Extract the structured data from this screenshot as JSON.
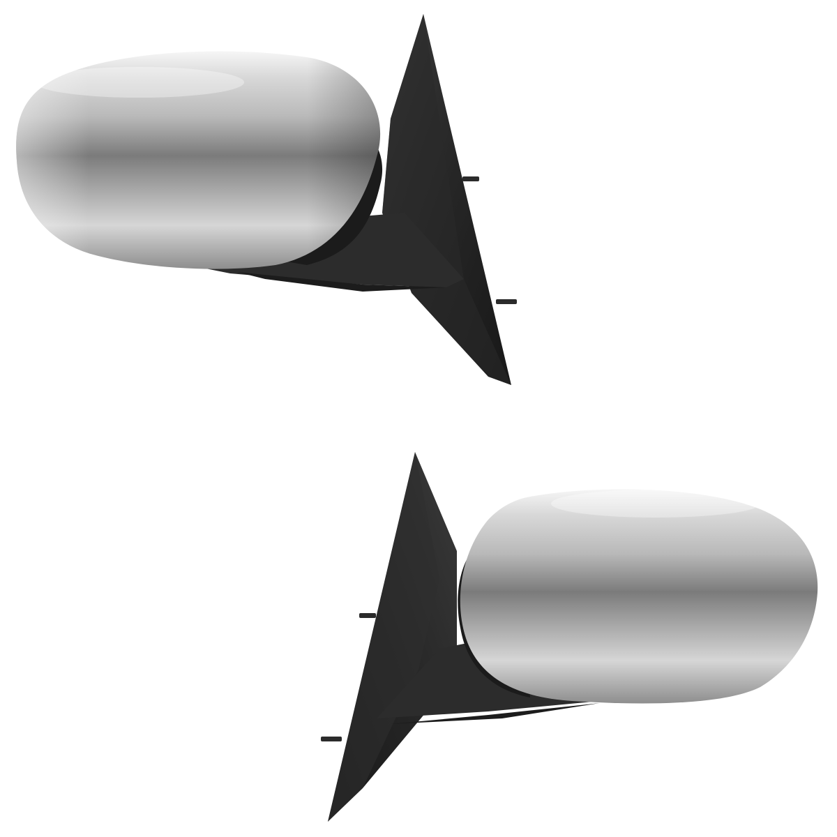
{
  "scene": {
    "subject": "pair-of-side-mirrors",
    "background_color": "#ffffff",
    "mirror_left": {
      "side": "driver",
      "housing_finish": "chrome",
      "icon": "side-mirror-icon"
    },
    "mirror_right": {
      "side": "passenger",
      "housing_finish": "chrome",
      "icon": "side-mirror-icon"
    },
    "colors": {
      "chrome_highlight": "#f3f3f3",
      "chrome_mid": "#b8b8b8",
      "chrome_shadow": "#6e6e6e",
      "mount_black": "#2c2c2c",
      "mount_dark": "#1a1a1a"
    }
  }
}
